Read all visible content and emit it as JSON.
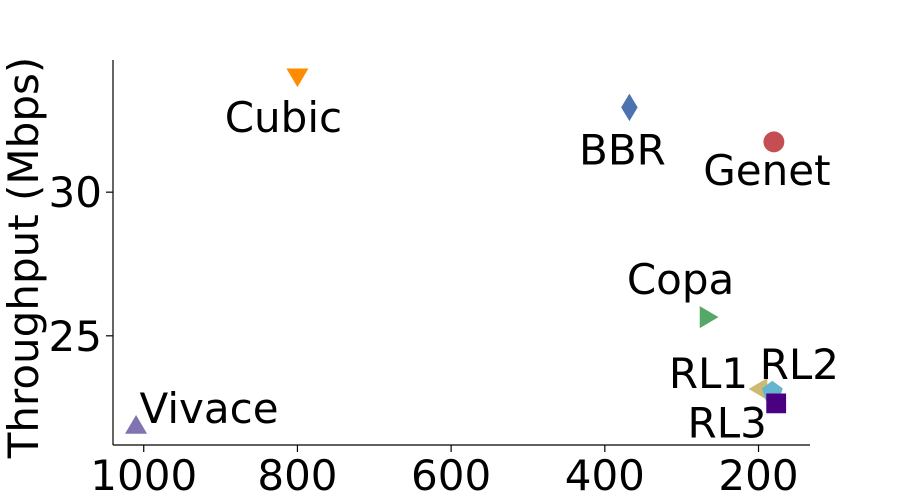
{
  "chart_data": {
    "type": "scatter",
    "title": "",
    "xlabel": "",
    "ylabel": "Throughput (Mbps)",
    "xlim": [
      1040,
      133
    ],
    "ylim": [
      21.2,
      34.6
    ],
    "x_inverted": true,
    "xticks": [
      {
        "value": 1000,
        "label": "1000"
      },
      {
        "value": 800,
        "label": "800"
      },
      {
        "value": 600,
        "label": "600"
      },
      {
        "value": 400,
        "label": "400"
      },
      {
        "value": 200,
        "label": "200"
      }
    ],
    "yticks": [
      {
        "value": 25,
        "label": "25"
      },
      {
        "value": 30,
        "label": "30"
      }
    ],
    "grid": false,
    "points": [
      {
        "name": "Cubic",
        "x": 800,
        "y": 34.0,
        "marker": "triangle-down",
        "color": "#ff8c00",
        "label_dx": -14,
        "label_dy": 55
      },
      {
        "name": "BBR",
        "x": 368,
        "y": 32.95,
        "marker": "diamond",
        "color": "#4c72b0",
        "label_dx": -7,
        "label_dy": 57
      },
      {
        "name": "Genet",
        "x": 180,
        "y": 31.75,
        "marker": "circle",
        "color": "#c44e52",
        "label_dx": -7,
        "label_dy": 43
      },
      {
        "name": "Copa",
        "x": 265,
        "y": 25.65,
        "marker": "triangle-right",
        "color": "#55a868",
        "label_dx": -28,
        "label_dy": -23
      },
      {
        "name": "Vivace",
        "x": 1010,
        "y": 21.9,
        "marker": "triangle-up",
        "color": "#8172b2",
        "label_dx": 73,
        "label_dy": -2
      },
      {
        "name": "RL1",
        "x": 200,
        "y": 23.15,
        "marker": "triangle-left",
        "color": "#ccb974",
        "label_dx": -50,
        "label_dy": -1
      },
      {
        "name": "RL2",
        "x": 182,
        "y": 23.05,
        "marker": "pentagon",
        "color": "#64b5cd",
        "label_dx": 27,
        "label_dy": -13
      },
      {
        "name": "RL3",
        "x": 177,
        "y": 22.65,
        "marker": "square",
        "color": "#4b0082",
        "label_dx": -49,
        "label_dy": 34
      }
    ]
  }
}
